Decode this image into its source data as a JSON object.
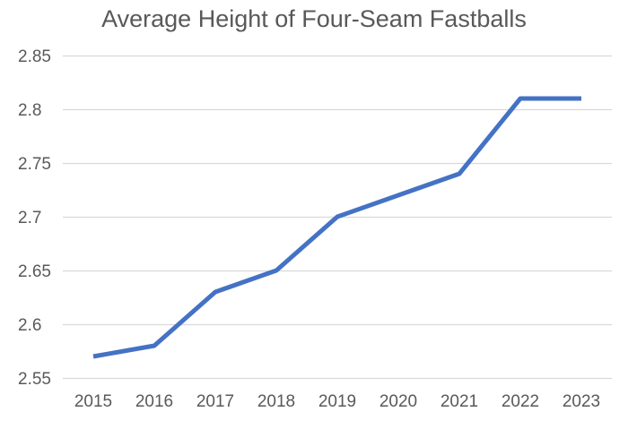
{
  "chart_data": {
    "type": "line",
    "title": "Average Height of Four-Seam Fastballs",
    "categories": [
      "2015",
      "2016",
      "2017",
      "2018",
      "2019",
      "2020",
      "2021",
      "2022",
      "2023"
    ],
    "values": [
      2.57,
      2.58,
      2.63,
      2.65,
      2.7,
      2.72,
      2.74,
      2.81,
      2.81
    ],
    "xlabel": "",
    "ylabel": "",
    "ylim": [
      2.55,
      2.85
    ],
    "ytick_step": 0.05,
    "ytick_labels": [
      "2.85",
      "2.8",
      "2.75",
      "2.7",
      "2.65",
      "2.6",
      "2.55"
    ],
    "grid": true,
    "legend": false,
    "colors": {
      "line": "#4472C4",
      "gridline": "#D9D9D9",
      "text": "#595959",
      "title": "#595959",
      "background": "#FFFFFF"
    }
  }
}
